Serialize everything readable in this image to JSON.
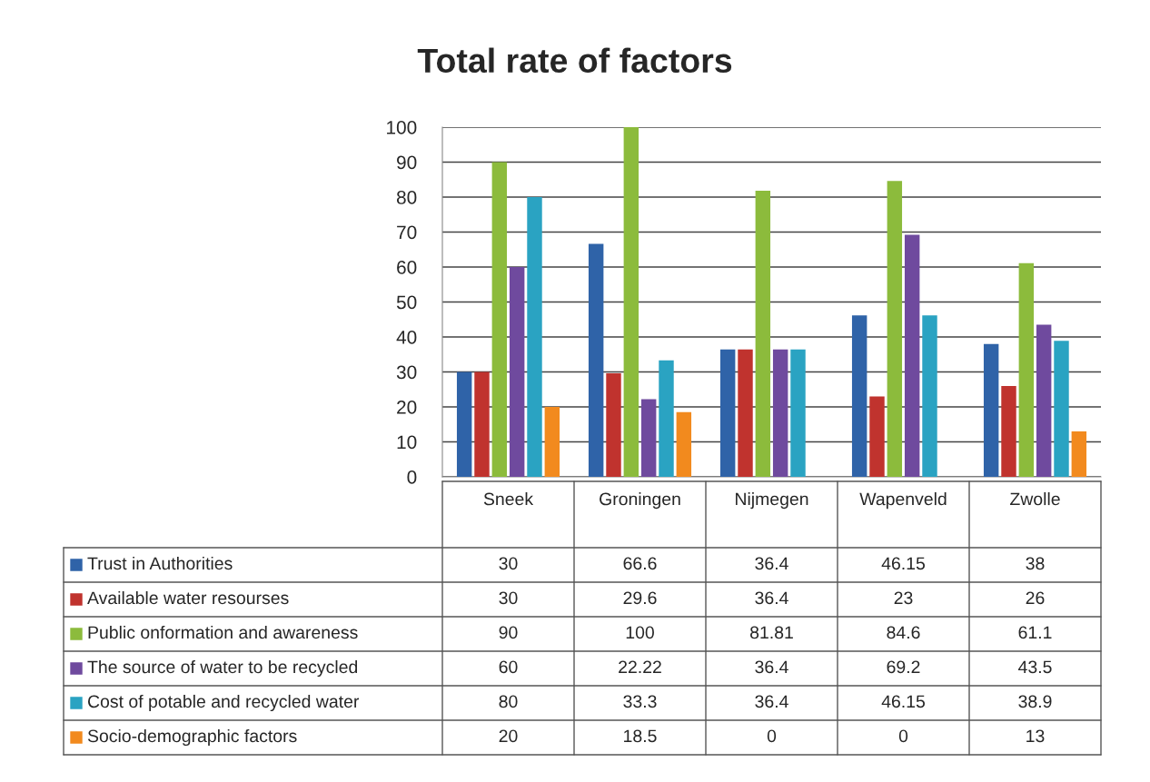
{
  "chart_data": {
    "type": "bar",
    "title": "Total rate of factors",
    "categories": [
      "Sneek",
      "Groningen",
      "Nijmegen",
      "Wapenveld",
      "Zwolle"
    ],
    "series": [
      {
        "name": "Trust in Authorities",
        "color": "#2f63a8",
        "values": [
          30,
          66.6,
          36.4,
          46.15,
          38
        ]
      },
      {
        "name": "Available water resourses",
        "color": "#c0332e",
        "values": [
          30,
          29.6,
          36.4,
          23,
          26
        ]
      },
      {
        "name": "Public onformation and awareness",
        "color": "#8cbb3c",
        "values": [
          90,
          100,
          81.81,
          84.6,
          61.1
        ]
      },
      {
        "name": "The source of water to be recycled",
        "color": "#6f4a9e",
        "values": [
          60,
          22.22,
          36.4,
          69.2,
          43.5
        ]
      },
      {
        "name": "Cost of potable and recycled water",
        "color": "#2aa3c2",
        "values": [
          80,
          33.3,
          36.4,
          46.15,
          38.9
        ]
      },
      {
        "name": "Socio-demographic factors",
        "color": "#f28a1e",
        "values": [
          20,
          18.5,
          0,
          0,
          13
        ]
      }
    ],
    "ylim": [
      0,
      100
    ],
    "yticks": [
      0,
      10,
      20,
      30,
      40,
      50,
      60,
      70,
      80,
      90,
      100
    ],
    "grid": "y",
    "data_labels": true,
    "legend": "bottom left"
  }
}
